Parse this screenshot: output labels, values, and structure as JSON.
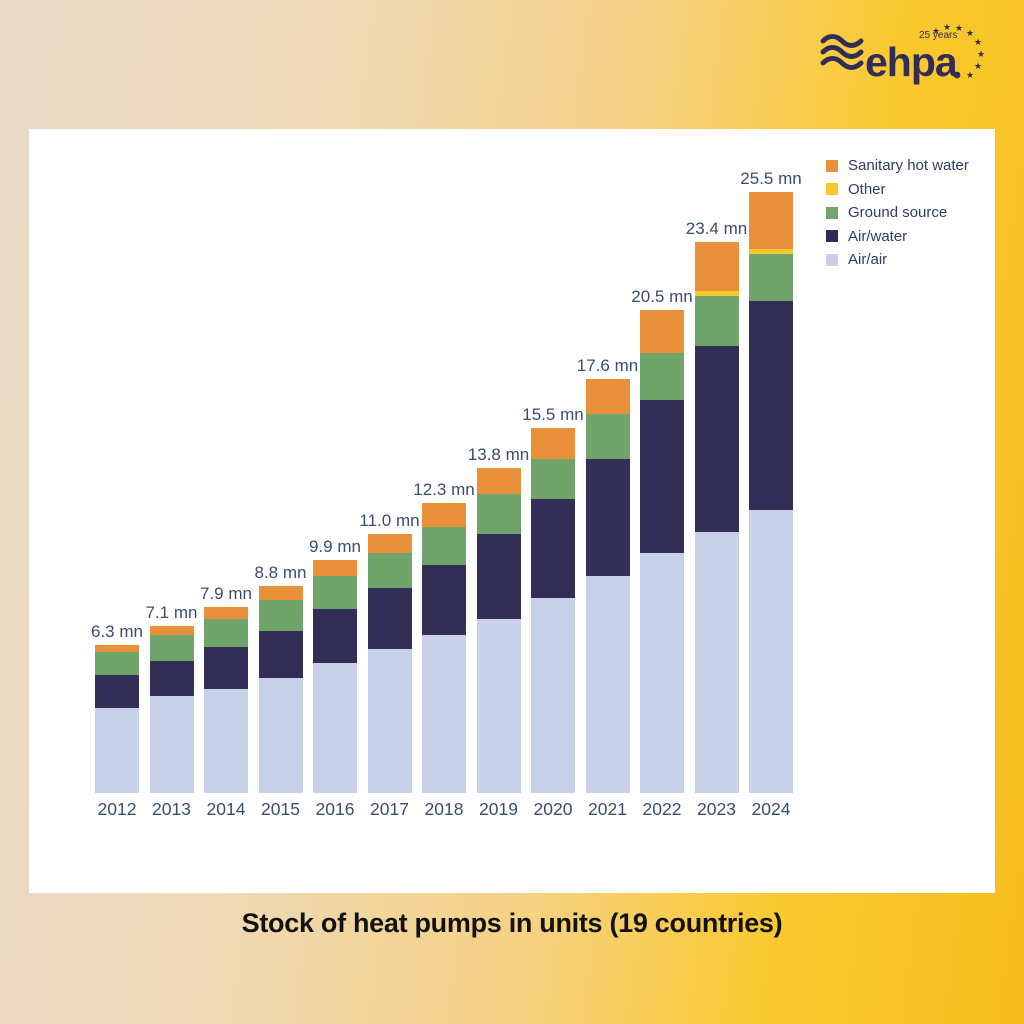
{
  "page": {
    "title": "Stock of heat pumps in units (19 countries)"
  },
  "logo": {
    "brand": "ehpa",
    "anniversary": "25 years",
    "color": "#312d56",
    "waves_icon": "three-wave-lines",
    "stars_icon": "eu-stars-circle"
  },
  "legend": [
    {
      "label": "Sanitary hot water",
      "color": "#e8913a"
    },
    {
      "label": "Other",
      "color": "#f6c72e"
    },
    {
      "label": "Ground source",
      "color": "#6fa56b"
    },
    {
      "label": "Air/water",
      "color": "#2f2b52"
    },
    {
      "label": "Air/air",
      "color": "#c7d2e8"
    }
  ],
  "colors": {
    "background_left": "#e9d9c8",
    "background_right": "#f5bd1c",
    "card": "#ffffff",
    "value_text": "#3a4d71",
    "title_text": "#121212"
  },
  "chart_data": {
    "type": "bar",
    "stacked": true,
    "title": "Stock of heat pumps in units (19 countries)",
    "unit": "mn",
    "xlabel": "",
    "ylabel": "",
    "grid": false,
    "axes_visible": false,
    "legend_position": "top-right",
    "ylim": [
      0,
      27
    ],
    "categories": [
      "2012",
      "2013",
      "2014",
      "2015",
      "2016",
      "2017",
      "2018",
      "2019",
      "2020",
      "2021",
      "2022",
      "2023",
      "2024"
    ],
    "totals": [
      6.3,
      7.1,
      7.9,
      8.8,
      9.9,
      11.0,
      12.3,
      13.8,
      15.5,
      17.6,
      20.5,
      23.4,
      25.5
    ],
    "total_labels": [
      "6.3 mn",
      "7.1 mn",
      "7.9 mn",
      "8.8 mn",
      "9.9 mn",
      "11.0 mn",
      "12.3 mn",
      "13.8 mn",
      "15.5 mn",
      "17.6 mn",
      "20.5 mn",
      "23.4 mn",
      "25.5 mn"
    ],
    "series": [
      {
        "name": "Air/air",
        "color": "#c7d2e8",
        "values": [
          3.6,
          4.1,
          4.4,
          4.9,
          5.5,
          6.1,
          6.7,
          7.4,
          8.3,
          9.2,
          10.2,
          11.1,
          12.0
        ]
      },
      {
        "name": "Air/water",
        "color": "#322e55",
        "values": [
          1.4,
          1.5,
          1.8,
          2.0,
          2.3,
          2.6,
          3.0,
          3.6,
          4.2,
          5.0,
          6.5,
          7.9,
          8.9
        ]
      },
      {
        "name": "Ground source",
        "color": "#6fa56b",
        "values": [
          1.0,
          1.1,
          1.2,
          1.3,
          1.4,
          1.5,
          1.6,
          1.7,
          1.7,
          1.9,
          2.0,
          2.1,
          2.0
        ]
      },
      {
        "name": "Other",
        "color": "#f6c72e",
        "values": [
          0,
          0,
          0,
          0,
          0,
          0,
          0,
          0,
          0,
          0,
          0,
          0.2,
          0.2
        ]
      },
      {
        "name": "Sanitary hot water",
        "color": "#e8913a",
        "values": [
          0.3,
          0.4,
          0.5,
          0.6,
          0.7,
          0.8,
          1.0,
          1.1,
          1.3,
          1.5,
          1.8,
          2.1,
          2.4
        ]
      }
    ]
  }
}
